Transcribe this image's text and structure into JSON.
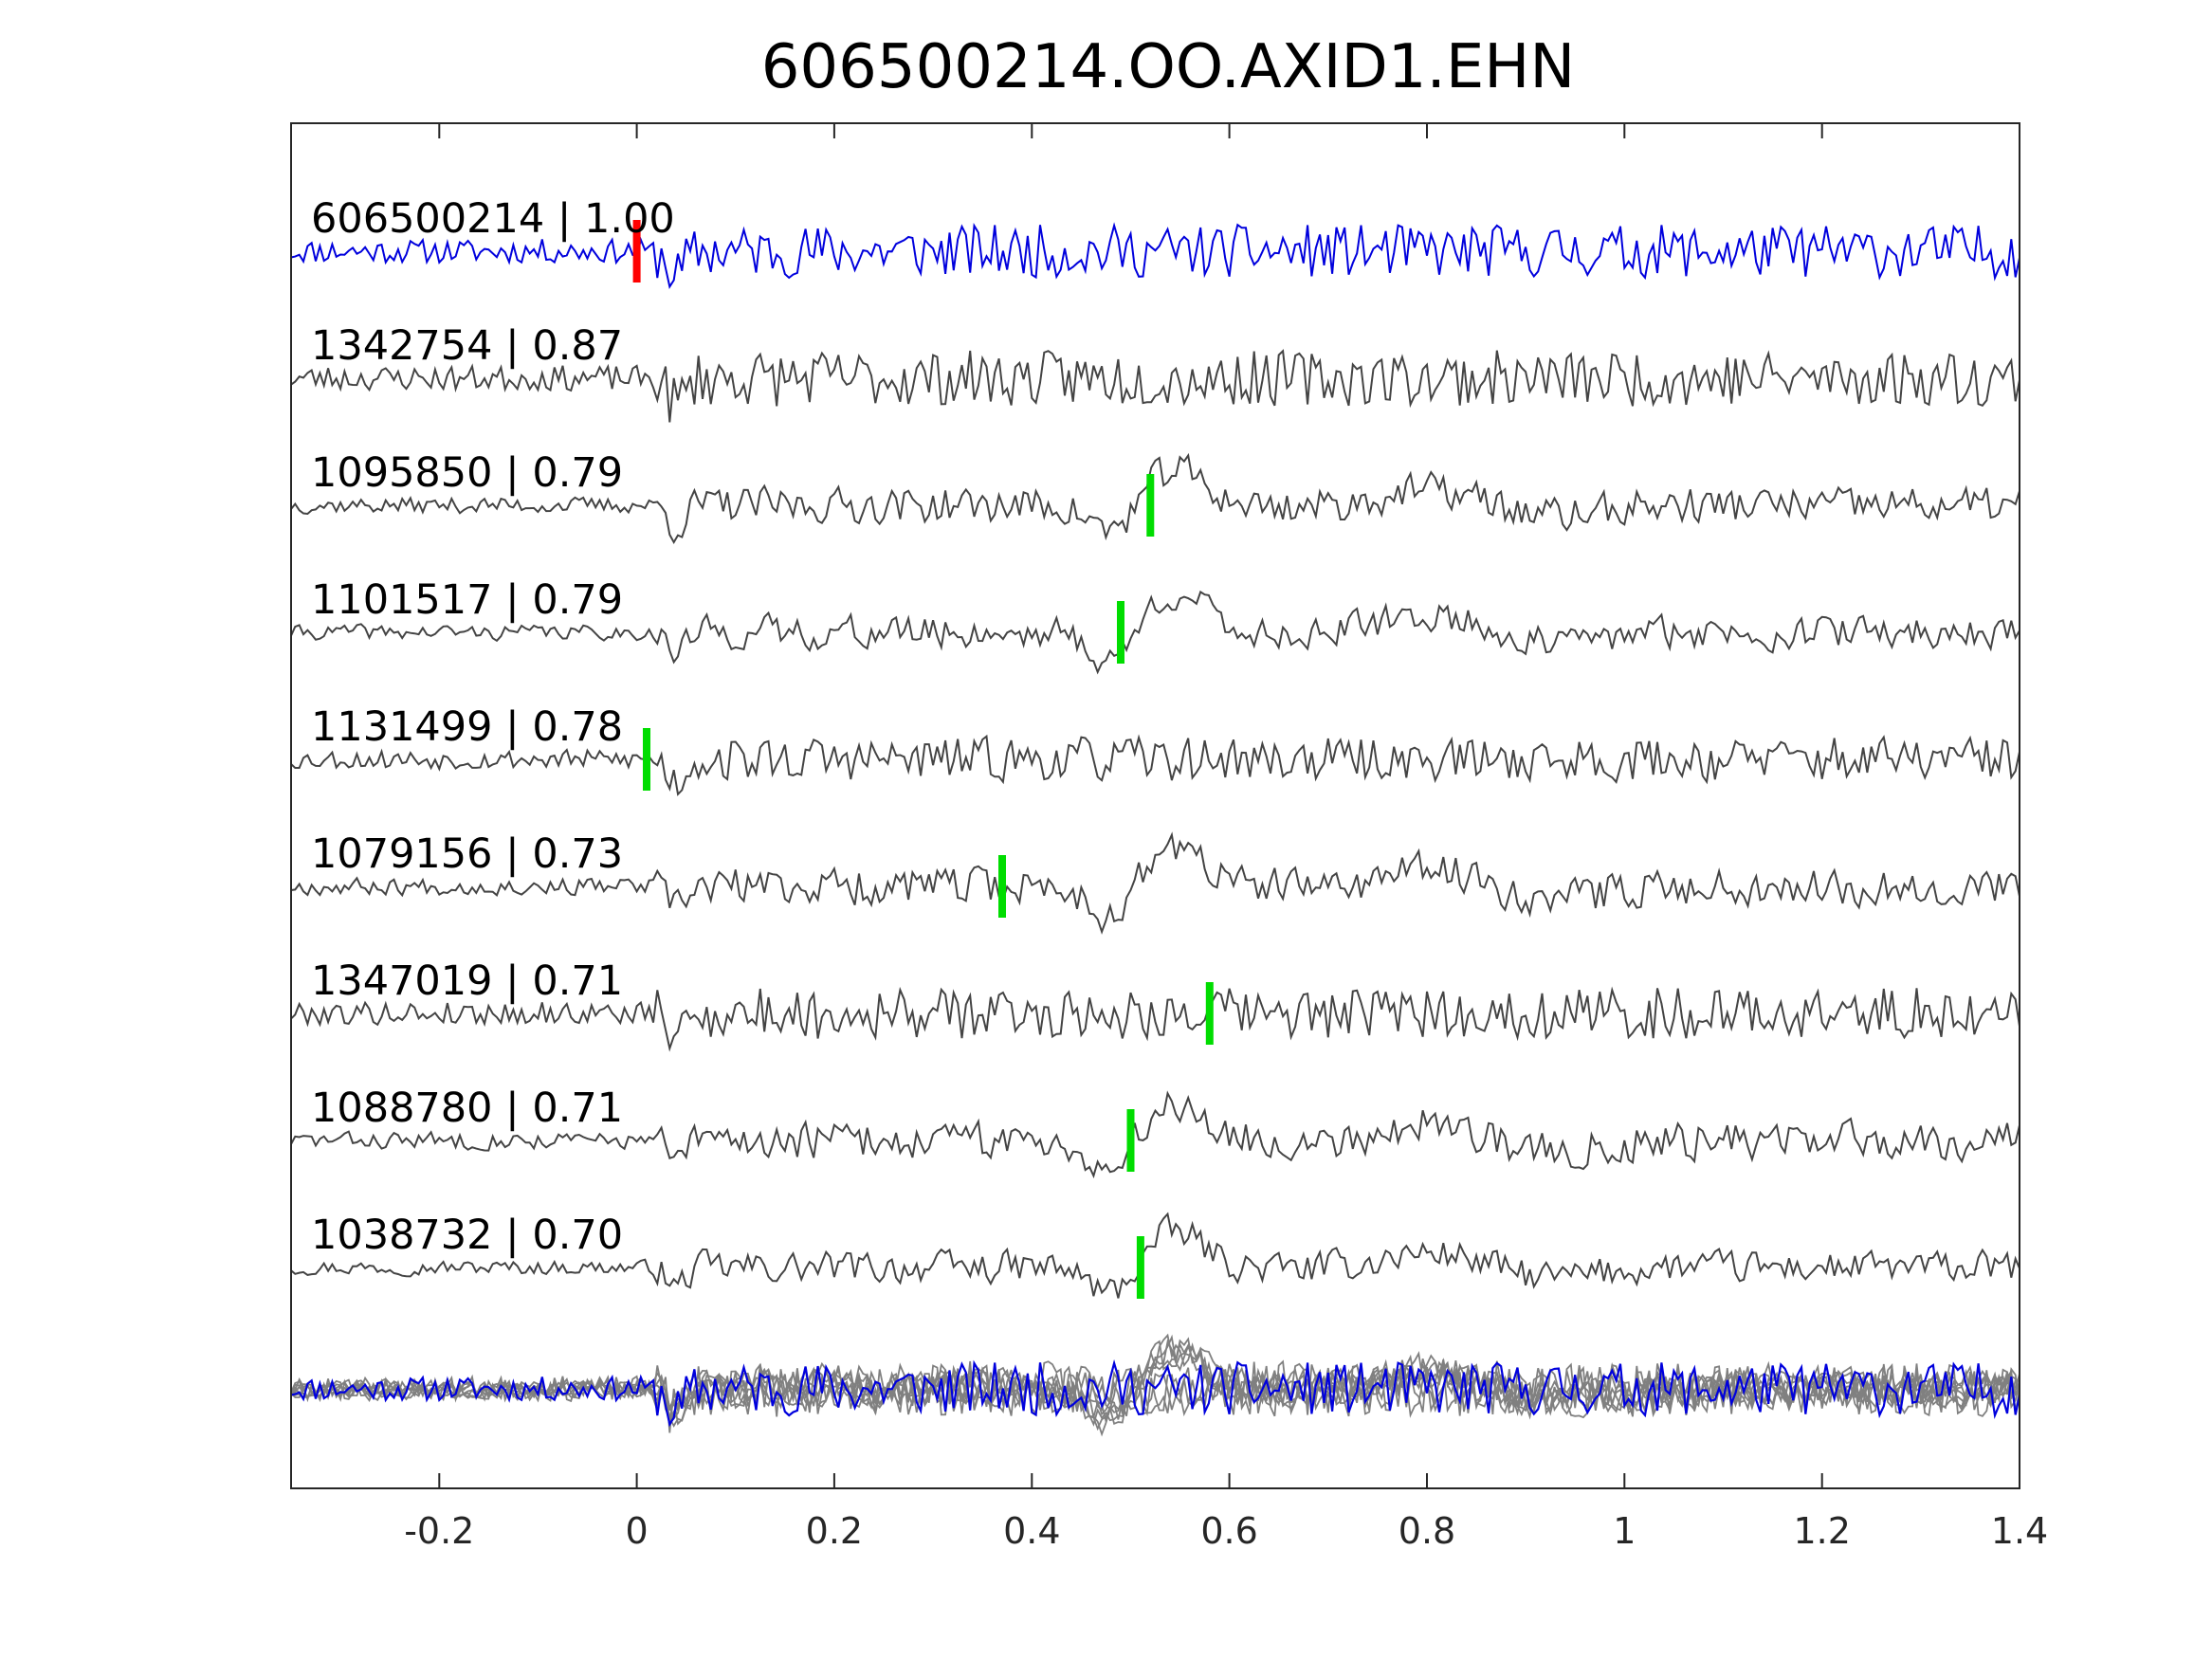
{
  "chart_data": {
    "type": "line",
    "title": "606500214.OO.AXID1.EHN",
    "xlabel": "",
    "ylabel": "",
    "xlim": [
      -0.35,
      1.4
    ],
    "xticks": [
      -0.2,
      0,
      0.2,
      0.4,
      0.6,
      0.8,
      1,
      1.2,
      1.4
    ],
    "xtick_labels": [
      "-0.2",
      "0",
      "0.2",
      "0.4",
      "0.6",
      "0.8",
      "1",
      "1.2",
      "1.4"
    ],
    "grid": false,
    "colors": {
      "template": "#0000dd",
      "matched": "#444444",
      "stack_overlay": "#808080",
      "template_pick": "#ff0000",
      "match_pick": "#00dd00",
      "axes": "#262626"
    },
    "series": [
      {
        "name": "606500214 | 1.00",
        "id": "606500214",
        "correlation": 1.0,
        "pick_time": 0.0,
        "pick_color": "red",
        "color": "blue",
        "shape": "noise",
        "freq": 1.0,
        "amp": 1.0,
        "seed": 11
      },
      {
        "name": "1342754 | 0.87",
        "id": "1342754",
        "correlation": 0.87,
        "pick_time": null,
        "color": "gray",
        "shape": "noise",
        "freq": 1.0,
        "amp": 1.05,
        "seed": 23
      },
      {
        "name": "1095850 | 0.79",
        "id": "1095850",
        "correlation": 0.79,
        "pick_time": 0.52,
        "pick_color": "green",
        "color": "gray",
        "shape": "event",
        "freq": 0.75,
        "amp": 0.85,
        "seed": 37
      },
      {
        "name": "1101517 | 0.79",
        "id": "1101517",
        "correlation": 0.79,
        "pick_time": 0.49,
        "pick_color": "green",
        "color": "gray",
        "shape": "event",
        "freq": 0.6,
        "amp": 0.95,
        "seed": 41
      },
      {
        "name": "1131499 | 0.78",
        "id": "1131499",
        "correlation": 0.78,
        "pick_time": 0.01,
        "pick_color": "green",
        "color": "gray",
        "shape": "noise",
        "freq": 0.85,
        "amp": 0.95,
        "seed": 53
      },
      {
        "name": "1079156 | 0.73",
        "id": "1079156",
        "correlation": 0.73,
        "pick_time": 0.37,
        "pick_color": "green",
        "color": "gray",
        "shape": "event",
        "freq": 0.7,
        "amp": 0.95,
        "seed": 67
      },
      {
        "name": "1347019 | 0.71",
        "id": "1347019",
        "correlation": 0.71,
        "pick_time": 0.58,
        "pick_color": "green",
        "color": "gray",
        "shape": "noise",
        "freq": 1.0,
        "amp": 0.95,
        "seed": 79
      },
      {
        "name": "1088780 | 0.71",
        "id": "1088780",
        "correlation": 0.71,
        "pick_time": 0.5,
        "pick_color": "green",
        "color": "gray",
        "shape": "event",
        "freq": 0.7,
        "amp": 0.95,
        "seed": 83
      },
      {
        "name": "1038732 | 0.70",
        "id": "1038732",
        "correlation": 0.7,
        "pick_time": 0.51,
        "pick_color": "green",
        "color": "gray",
        "shape": "event",
        "freq": 0.65,
        "amp": 0.85,
        "seed": 97
      }
    ],
    "stacked_overlay": {
      "description_free": true,
      "includes_all_series": true
    }
  }
}
